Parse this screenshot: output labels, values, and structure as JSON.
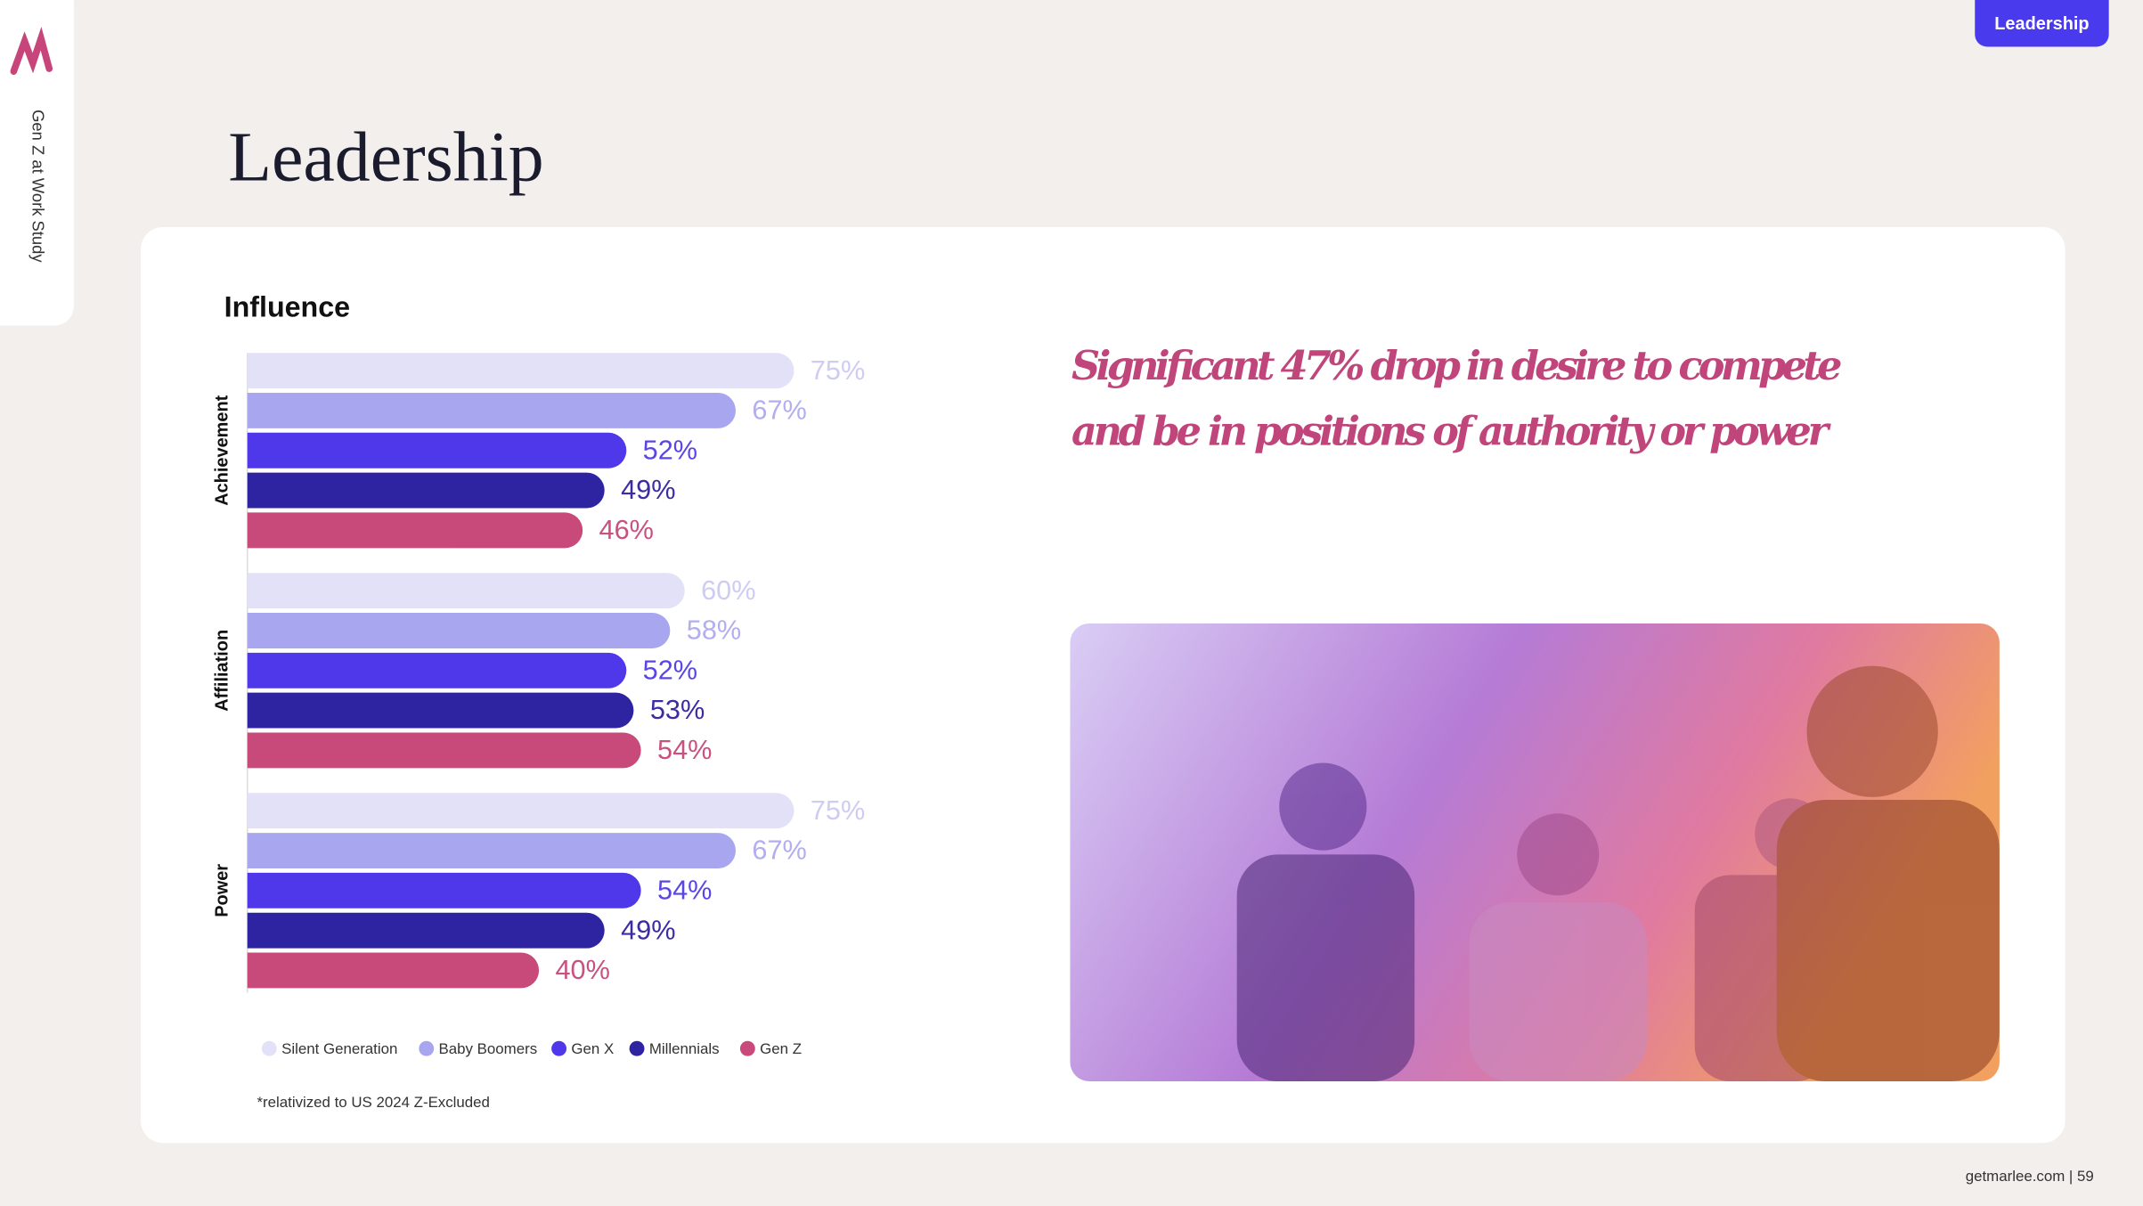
{
  "page": {
    "sidebar": "Gen Z at Work Study",
    "tab": "Leadership",
    "title": "Leadership",
    "quote": [
      "Significant 47% drop in desire to compete",
      "and be in positions of authority or power"
    ],
    "footer": "getmarlee.com | 59"
  },
  "chart_data": {
    "type": "bar",
    "orientation": "horizontal",
    "title": "Influence",
    "categories": [
      "Achievement",
      "Affiliation",
      "Power"
    ],
    "series": [
      {
        "name": "Silent Generation",
        "color": "#e3e1f7",
        "values": [
          75,
          60,
          75
        ],
        "value_labels": [
          "75%",
          "60%",
          "75%"
        ]
      },
      {
        "name": "Baby Boomers",
        "color": "#a9a6f0",
        "values": [
          67,
          58,
          67
        ],
        "value_labels": [
          "67%",
          "58%",
          "67%"
        ]
      },
      {
        "name": "Gen X",
        "color": "#4f37ea",
        "values": [
          52,
          52,
          54
        ],
        "value_labels": [
          "52%",
          "52%",
          "54%"
        ]
      },
      {
        "name": "Millennials",
        "color": "#2e23a0",
        "values": [
          49,
          53,
          49
        ],
        "value_labels": [
          "49%",
          "53%",
          "49%"
        ]
      },
      {
        "name": "Gen Z",
        "color": "#c74a7a",
        "values": [
          46,
          54,
          40
        ],
        "value_labels": [
          "46%",
          "54%",
          "40%"
        ]
      }
    ],
    "note": "*relativized to US 2024 Z-Excluded"
  }
}
